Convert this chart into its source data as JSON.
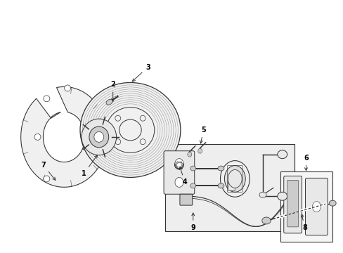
{
  "bg_color": "#ffffff",
  "line_color": "#333333",
  "label_color": "#000000",
  "fig_width": 4.89,
  "fig_height": 3.6,
  "dpi": 100
}
